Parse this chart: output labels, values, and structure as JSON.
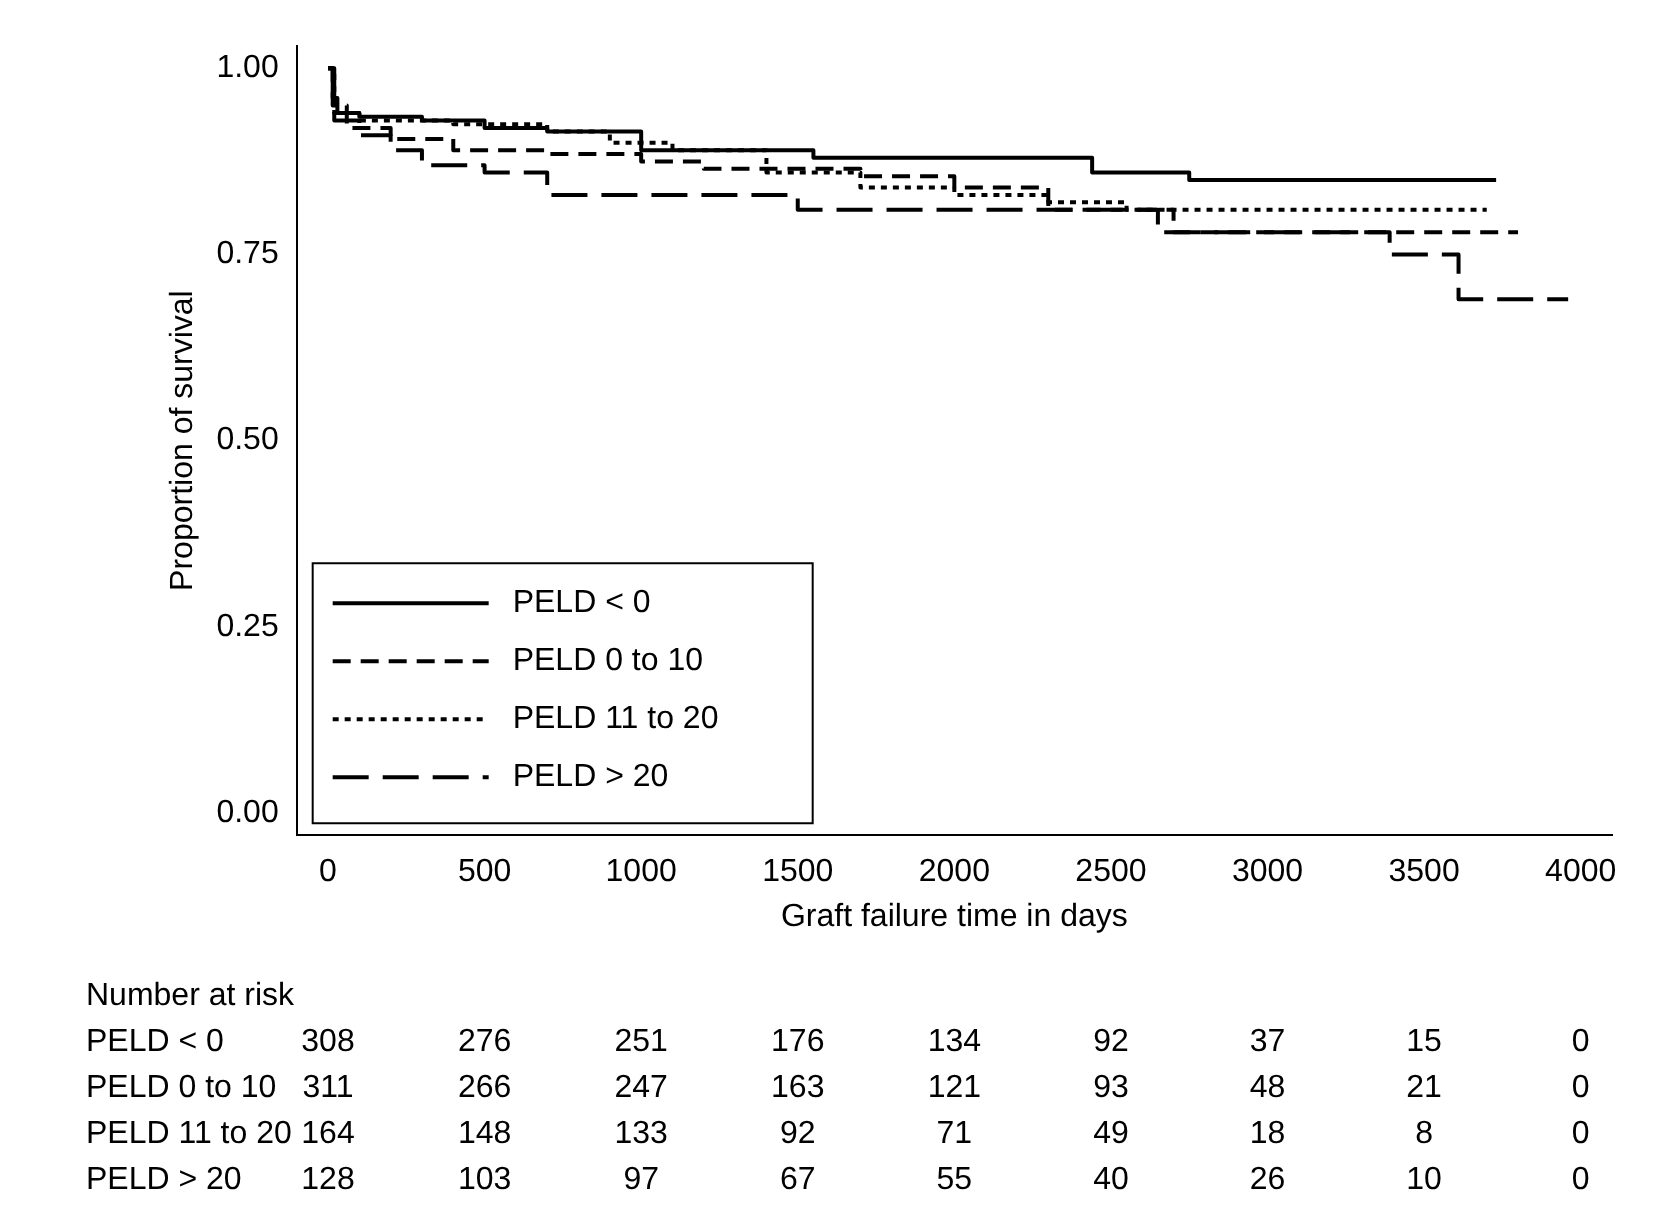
{
  "chart_data": {
    "type": "step",
    "xlabel": "Graft failure time in days",
    "ylabel": "Proportion of survival",
    "xlim": [
      -100,
      4100
    ],
    "xticks": [
      0,
      500,
      1000,
      1500,
      2000,
      2500,
      3000,
      3500,
      4000
    ],
    "ylim": [
      -0.03,
      1.03
    ],
    "yticks": [
      {
        "value": 0,
        "label": "0.00"
      },
      {
        "value": 0.25,
        "label": "0.25"
      },
      {
        "value": 0.5,
        "label": "0.50"
      },
      {
        "value": 0.75,
        "label": "0.75"
      },
      {
        "value": 1,
        "label": "1.00"
      }
    ],
    "grid": false,
    "legend": "bottom left",
    "marker": "none",
    "series": [
      {
        "name": "PELD < 0",
        "color": "#000000",
        "line_style": "solid",
        "x": [
          0,
          15,
          30,
          100,
          300,
          500,
          700,
          1000,
          1550,
          2440,
          2750,
          3730
        ],
        "values": [
          1,
          0.96,
          0.94,
          0.935,
          0.93,
          0.92,
          0.915,
          0.89,
          0.88,
          0.86,
          0.85,
          0.85
        ]
      },
      {
        "name": "PELD 0 to 10",
        "color": "#000000",
        "line_style": "dashed",
        "x": [
          0,
          15,
          60,
          200,
          400,
          700,
          1000,
          1200,
          1700,
          2000,
          2300,
          2700,
          3800
        ],
        "values": [
          1,
          0.95,
          0.92,
          0.905,
          0.89,
          0.885,
          0.875,
          0.865,
          0.855,
          0.84,
          0.81,
          0.78,
          0.78
        ]
      },
      {
        "name": "PELD 11 to 20",
        "color": "#000000",
        "line_style": "dotted",
        "x": [
          0,
          20,
          100,
          400,
          700,
          900,
          1100,
          1400,
          1700,
          2000,
          2300,
          2550,
          3700
        ],
        "values": [
          1,
          0.94,
          0.93,
          0.925,
          0.915,
          0.9,
          0.89,
          0.86,
          0.84,
          0.83,
          0.82,
          0.81,
          0.81
        ]
      },
      {
        "name": "PELD > 20",
        "color": "#000000",
        "line_style": "dashed",
        "x": [
          0,
          20,
          100,
          200,
          300,
          500,
          700,
          1500,
          2650,
          3390,
          3610,
          3960
        ],
        "values": [
          1,
          0.93,
          0.91,
          0.89,
          0.87,
          0.86,
          0.83,
          0.81,
          0.78,
          0.75,
          0.69,
          0.69
        ]
      }
    ],
    "annotations": [
      "Number at risk",
      "308 276 251 176 134 92 37 15 0",
      "311 266 247 163 121 93 48 21 0",
      "164 148 133 92 71 49 18 8 0",
      "128 103 97 67 55 40 26 10 0"
    ]
  }
}
